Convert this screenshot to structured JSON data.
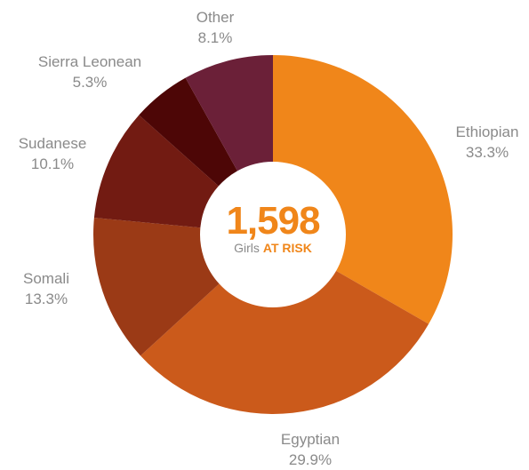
{
  "chart_data": {
    "type": "pie",
    "donut": true,
    "unit": "%",
    "center": {
      "total": "1,598",
      "caption_prefix": "Girls",
      "caption_emphasis": "AT RISK"
    },
    "slices": [
      {
        "label": "Ethiopian",
        "value": 33.3,
        "value_text": "33.3%",
        "color": "#f0861a"
      },
      {
        "label": "Egyptian",
        "value": 29.9,
        "value_text": "29.9%",
        "color": "#cb5a1b"
      },
      {
        "label": "Somali",
        "value": 13.3,
        "value_text": "13.3%",
        "color": "#9b3a16"
      },
      {
        "label": "Sudanese",
        "value": 10.1,
        "value_text": "10.1%",
        "color": "#721b12"
      },
      {
        "label": "Sierra Leonean",
        "value": 5.3,
        "value_text": "5.3%",
        "color": "#4d0606"
      },
      {
        "label": "Other",
        "value": 8.1,
        "value_text": "8.1%",
        "color": "#6b2038"
      }
    ],
    "accent_color": "#f0861a",
    "legend": "none"
  }
}
